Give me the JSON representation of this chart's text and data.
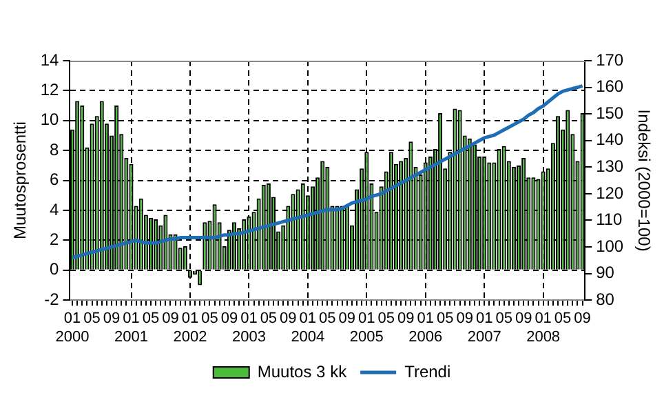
{
  "chart_data": {
    "type": "bar",
    "ylabel": "Muutosprosentti",
    "y2label": "Indeksi (2000=100)",
    "categories": [
      "01\n2000",
      null,
      null,
      null,
      "05",
      null,
      null,
      null,
      "09",
      null,
      null,
      null,
      "01\n2001",
      null,
      null,
      null,
      "05",
      null,
      null,
      null,
      "09",
      null,
      null,
      null,
      "01\n2002",
      null,
      null,
      null,
      "05",
      null,
      null,
      null,
      "09",
      null,
      null,
      null,
      "01\n2003",
      null,
      null,
      null,
      "05",
      null,
      null,
      null,
      "09",
      null,
      null,
      null,
      "01\n2004",
      null,
      null,
      null,
      "05",
      null,
      null,
      null,
      "09",
      null,
      null,
      null,
      "01\n2005",
      null,
      null,
      null,
      "05",
      null,
      null,
      null,
      "09",
      null,
      null,
      null,
      "01\n2006",
      null,
      null,
      null,
      "05",
      null,
      null,
      null,
      "09",
      null,
      null,
      null,
      "01\n2007",
      null,
      null,
      null,
      "05",
      null,
      null,
      null,
      "09",
      null,
      null,
      null,
      "01\n2008",
      null,
      null,
      null,
      "05",
      null,
      null,
      null,
      "09"
    ],
    "series": [
      {
        "name": "Muutos 3 kk",
        "color": "#4cbb3c",
        "values": [
          9.4,
          11.3,
          11.0,
          8.2,
          9.8,
          10.3,
          11.3,
          9.8,
          9.0,
          11.0,
          9.1,
          7.5,
          7.1,
          4.3,
          4.8,
          3.7,
          3.5,
          3.4,
          3.0,
          3.7,
          2.4,
          2.4,
          1.5,
          1.6,
          -0.5,
          -0.3,
          -1.0,
          3.2,
          3.3,
          4.4,
          3.2,
          1.6,
          2.7,
          3.2,
          2.8,
          3.4,
          3.6,
          3.9,
          4.8,
          5.7,
          5.8,
          4.9,
          2.6,
          3.0,
          4.3,
          5.1,
          5.4,
          5.8,
          5.0,
          5.6,
          6.2,
          7.3,
          6.9,
          4.3,
          4.3,
          4.3,
          4.3,
          3.0,
          5.4,
          6.8,
          7.9,
          5.8,
          3.9,
          5.6,
          6.6,
          7.9,
          7.1,
          7.3,
          7.5,
          8.6,
          6.9,
          6.4,
          7.2,
          7.6,
          8.1,
          10.5,
          6.8,
          7.9,
          10.8,
          10.7,
          9.0,
          8.8,
          8.4,
          7.6,
          7.6,
          7.2,
          7.2,
          8.1,
          8.3,
          7.3,
          6.9,
          7.0,
          7.5,
          6.2,
          6.2,
          6.1,
          6.6,
          6.8,
          8.5,
          10.3,
          9.4,
          10.7,
          9.1,
          7.3,
          10.5
        ]
      },
      {
        "name": "Trendi",
        "type": "line",
        "axis": "y2",
        "color": "#1f6db5",
        "values": [
          96,
          96.5,
          97,
          97.5,
          98,
          98.5,
          99,
          99.5,
          100,
          100.5,
          101,
          101.5,
          102,
          102.5,
          102,
          101.5,
          101.5,
          101.5,
          102,
          102.5,
          103,
          103,
          103.5,
          103.5,
          103.5,
          103.5,
          103.5,
          103.5,
          103.5,
          103.5,
          104,
          104.5,
          104.5,
          105,
          105,
          105.5,
          106,
          106.5,
          107,
          107.5,
          108,
          108.5,
          109,
          109.5,
          110,
          110.5,
          111,
          111.5,
          112,
          112.5,
          113,
          113.5,
          114,
          114,
          114,
          114.5,
          115.5,
          116.5,
          117,
          117.5,
          118,
          119,
          119.5,
          120,
          121,
          122,
          123,
          124,
          125,
          126,
          127,
          128,
          129,
          130,
          131,
          132,
          133,
          134,
          135,
          136,
          137,
          138,
          139,
          140,
          141,
          141.5,
          142,
          143,
          144,
          145,
          146,
          147,
          148,
          149.5,
          150.5,
          152,
          153,
          154.5,
          156,
          157.5,
          158.5,
          159,
          159.5,
          160,
          160.5
        ]
      }
    ],
    "ylim": [
      -2,
      14
    ],
    "yticks": [
      -2,
      0,
      2,
      4,
      6,
      8,
      10,
      12,
      14
    ],
    "y2lim": [
      80,
      170
    ],
    "y2ticks": [
      80,
      90,
      100,
      110,
      120,
      130,
      140,
      150,
      160,
      170
    ],
    "grid": true,
    "legend": "bottom",
    "marker": "none"
  }
}
